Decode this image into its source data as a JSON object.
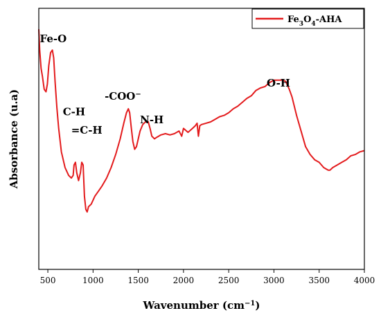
{
  "chart_data": {
    "type": "line",
    "xlabel": "Wavenumber (cm",
    "xlabel_sup": "−1",
    "xlabel_close": ")",
    "ylabel": "Absorbance (u.a)",
    "xlim": [
      400,
      4000
    ],
    "ylim": [
      0,
      100
    ],
    "xticks": [
      500,
      1000,
      1500,
      2000,
      2500,
      3000,
      3500,
      4000
    ],
    "line_color": "#e31a1c",
    "legend": {
      "position": "top-right",
      "base": "Fe",
      "sub1": "3",
      "mid": "O",
      "sub2": "4",
      "tail": "-AHA"
    },
    "annotations": [
      {
        "text": "Fe-O",
        "x": 560,
        "y": 87
      },
      {
        "text": "C-H",
        "x": 790,
        "y": 59
      },
      {
        "text": "=C-H",
        "x": 930,
        "y": 52
      },
      {
        "text": "-COO",
        "sup": "−",
        "x": 1330,
        "y": 65
      },
      {
        "text": "N-H",
        "x": 1650,
        "y": 56
      },
      {
        "text": "O-H",
        "x": 3050,
        "y": 70
      }
    ],
    "series": [
      {
        "x": [
          400,
          410,
          425,
          440,
          460,
          480,
          495,
          510,
          530,
          550,
          565,
          580,
          600,
          620,
          650,
          690,
          730,
          760,
          780,
          790,
          805,
          820,
          840,
          860,
          875,
          890,
          905,
          920,
          935,
          950,
          980,
          1020,
          1060,
          1100,
          1150,
          1200,
          1250,
          1300,
          1340,
          1370,
          1390,
          1405,
          1420,
          1440,
          1460,
          1480,
          1500,
          1520,
          1550,
          1580,
          1610,
          1630,
          1650,
          1680,
          1700,
          1750,
          1800,
          1850,
          1900,
          1950,
          1980,
          2000,
          2050,
          2100,
          2130,
          2150,
          2165,
          2180,
          2200,
          2250,
          2300,
          2350,
          2400,
          2450,
          2500,
          2550,
          2600,
          2650,
          2700,
          2750,
          2800,
          2850,
          2900,
          2950,
          3000,
          3050,
          3100,
          3130,
          3170,
          3200,
          3250,
          3300,
          3350,
          3400,
          3450,
          3500,
          3550,
          3600,
          3620,
          3650,
          3700,
          3750,
          3800,
          3850,
          3900,
          3950,
          4000
        ],
        "y": [
          92,
          84,
          77,
          74,
          69,
          68,
          71,
          78,
          83,
          84,
          81,
          72,
          62,
          54,
          45,
          39,
          36,
          35,
          36,
          40,
          41,
          37,
          34,
          37,
          41,
          40,
          28,
          23,
          22,
          24,
          25,
          28,
          30,
          32,
          35,
          39,
          44,
          50,
          56,
          60,
          61.5,
          60,
          55,
          49,
          46,
          47,
          50,
          53,
          55.5,
          56.5,
          56.5,
          54,
          51,
          50,
          50.5,
          51.5,
          52,
          51.5,
          52,
          53,
          51,
          54,
          52.5,
          54,
          55,
          56,
          51,
          55,
          55.5,
          56,
          56.5,
          57.5,
          58.5,
          59,
          60,
          61.5,
          62.5,
          64,
          65.5,
          66.5,
          68.5,
          69.5,
          70,
          71.5,
          72.5,
          72.5,
          72.5,
          72,
          69,
          66,
          59,
          53,
          47,
          44,
          42,
          41,
          39,
          38,
          38,
          39,
          40,
          41,
          42,
          43.5,
          44,
          45,
          45.5
        ]
      }
    ]
  }
}
